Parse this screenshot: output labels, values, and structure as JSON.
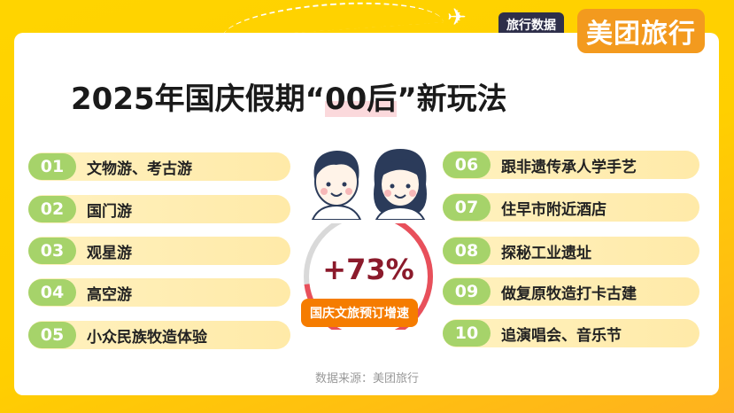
{
  "header": {
    "tag": "旅行数据",
    "brand": "美团旅行"
  },
  "title": {
    "prefix": "2025年国庆假期“",
    "highlight": "00后",
    "suffix": "”新玩法"
  },
  "stat": {
    "value": "+73%",
    "percent": 73,
    "label": "国庆文旅预订增速",
    "ring_color": "#E8505B",
    "track_color": "#D9D9D9"
  },
  "left_items": [
    {
      "num": "01",
      "label": "文物游、考古游"
    },
    {
      "num": "02",
      "label": "国门游"
    },
    {
      "num": "03",
      "label": "观星游"
    },
    {
      "num": "04",
      "label": "高空游"
    },
    {
      "num": "05",
      "label": "小众民族牧造体验"
    }
  ],
  "right_items": [
    {
      "num": "06",
      "label": "跟非遗传承人学手艺"
    },
    {
      "num": "07",
      "label": "住早市附近酒店"
    },
    {
      "num": "08",
      "label": "探秘工业遗址"
    },
    {
      "num": "09",
      "label": "做复原牧造打卡古建"
    },
    {
      "num": "10",
      "label": "追演唱会、音乐节"
    }
  ],
  "footer": {
    "source": "数据来源：美团旅行"
  },
  "colors": {
    "background": "#FFD100",
    "badge": "#A6D36A",
    "brand": "#F39A1E"
  }
}
